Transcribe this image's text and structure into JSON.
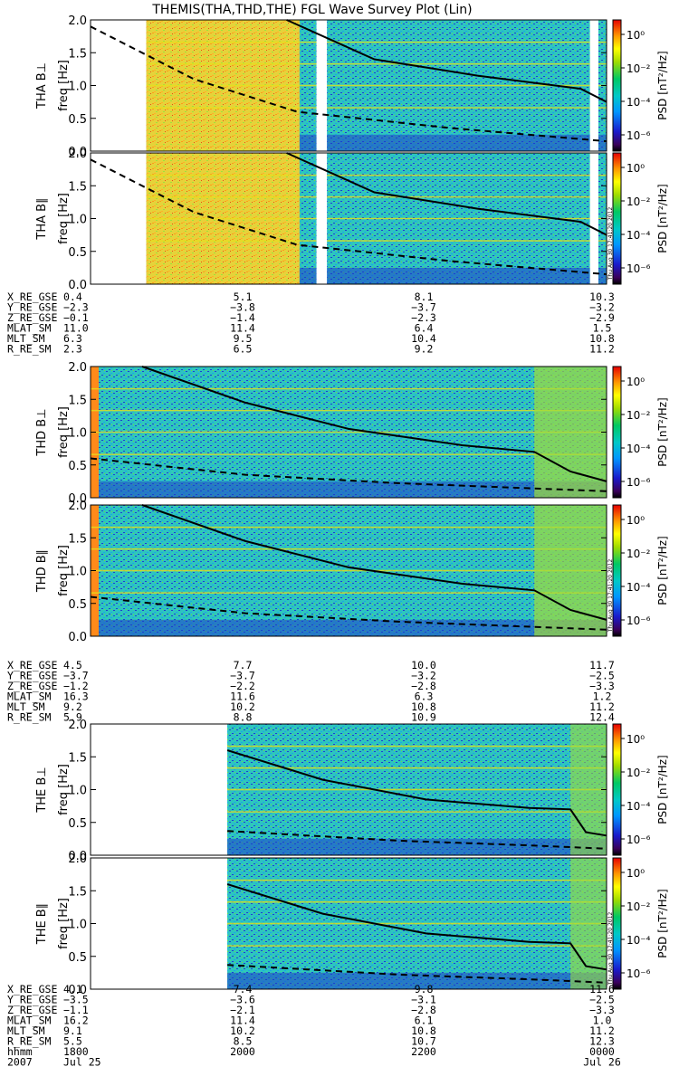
{
  "title": "THEMIS(THA,THD,THE) FGL Wave Survey Plot (Lin)",
  "stamp": "Thu Aug 30 17:41:20 2012",
  "colorbar": {
    "label": "PSD [nT²/Hz]",
    "ticks": [
      "10⁰",
      "10⁻²",
      "10⁻⁴",
      "10⁻⁶"
    ]
  },
  "freq_axis": {
    "label": "freq [Hz]",
    "ylim": [
      0.0,
      2.0
    ],
    "ticks": [
      "0.0",
      "0.5",
      "1.0",
      "1.5",
      "2.0"
    ]
  },
  "chart_data": [
    {
      "type": "heatmap",
      "probe": "THA",
      "component": "B⊥",
      "label": "THA B⊥",
      "data_intervals": [
        [
          0.108,
          0.438
        ],
        [
          0.458,
          0.968
        ],
        [
          0.984,
          1.0
        ]
      ],
      "rainbow_until": 0.405,
      "gap_intervals": [
        [
          0.438,
          0.458
        ],
        [
          0.968,
          0.984
        ]
      ],
      "solid_curve": [
        [
          0.38,
          2.0
        ],
        [
          0.55,
          1.4
        ],
        [
          0.75,
          1.15
        ],
        [
          0.95,
          0.95
        ],
        [
          1.0,
          0.75
        ]
      ],
      "dashed_curve": [
        [
          0.0,
          1.9
        ],
        [
          0.2,
          1.1
        ],
        [
          0.4,
          0.6
        ],
        [
          0.7,
          0.35
        ],
        [
          1.0,
          0.15
        ]
      ]
    },
    {
      "type": "heatmap",
      "probe": "THA",
      "component": "B∥",
      "label": "THA B∥",
      "data_intervals": [
        [
          0.108,
          0.438
        ],
        [
          0.458,
          0.968
        ],
        [
          0.984,
          1.0
        ]
      ],
      "rainbow_until": 0.405,
      "gap_intervals": [
        [
          0.438,
          0.458
        ],
        [
          0.968,
          0.984
        ]
      ],
      "solid_curve": [
        [
          0.38,
          2.0
        ],
        [
          0.55,
          1.4
        ],
        [
          0.75,
          1.15
        ],
        [
          0.95,
          0.95
        ],
        [
          1.0,
          0.75
        ]
      ],
      "dashed_curve": [
        [
          0.0,
          1.9
        ],
        [
          0.2,
          1.1
        ],
        [
          0.4,
          0.6
        ],
        [
          0.7,
          0.35
        ],
        [
          1.0,
          0.15
        ]
      ]
    },
    {
      "type": "heatmap",
      "probe": "THD",
      "component": "B⊥",
      "label": "THD B⊥",
      "data_intervals": [
        [
          0.0,
          1.0
        ]
      ],
      "solid_curve": [
        [
          0.1,
          2.0
        ],
        [
          0.3,
          1.45
        ],
        [
          0.5,
          1.05
        ],
        [
          0.72,
          0.8
        ],
        [
          0.86,
          0.7
        ],
        [
          0.93,
          0.4
        ],
        [
          1.0,
          0.25
        ]
      ],
      "dashed_curve": [
        [
          0.0,
          0.6
        ],
        [
          0.3,
          0.35
        ],
        [
          0.6,
          0.22
        ],
        [
          1.0,
          0.1
        ]
      ]
    },
    {
      "type": "heatmap",
      "probe": "THD",
      "component": "B∥",
      "label": "THD B∥",
      "data_intervals": [
        [
          0.0,
          1.0
        ]
      ],
      "solid_curve": [
        [
          0.1,
          2.0
        ],
        [
          0.3,
          1.45
        ],
        [
          0.5,
          1.05
        ],
        [
          0.72,
          0.8
        ],
        [
          0.86,
          0.7
        ],
        [
          0.93,
          0.4
        ],
        [
          1.0,
          0.25
        ]
      ],
      "dashed_curve": [
        [
          0.0,
          0.6
        ],
        [
          0.3,
          0.35
        ],
        [
          0.6,
          0.22
        ],
        [
          1.0,
          0.1
        ]
      ]
    },
    {
      "type": "heatmap",
      "probe": "THE",
      "component": "B⊥",
      "label": "THE B⊥",
      "data_intervals": [
        [
          0.265,
          1.0
        ]
      ],
      "solid_curve": [
        [
          0.265,
          1.6
        ],
        [
          0.45,
          1.15
        ],
        [
          0.65,
          0.85
        ],
        [
          0.85,
          0.72
        ],
        [
          0.93,
          0.7
        ],
        [
          0.96,
          0.35
        ],
        [
          1.0,
          0.3
        ]
      ],
      "dashed_curve": [
        [
          0.265,
          0.37
        ],
        [
          0.6,
          0.22
        ],
        [
          0.85,
          0.15
        ],
        [
          1.0,
          0.1
        ]
      ]
    },
    {
      "type": "heatmap",
      "probe": "THE",
      "component": "B∥",
      "label": "THE B∥",
      "data_intervals": [
        [
          0.265,
          1.0
        ]
      ],
      "solid_curve": [
        [
          0.265,
          1.6
        ],
        [
          0.45,
          1.15
        ],
        [
          0.65,
          0.85
        ],
        [
          0.85,
          0.72
        ],
        [
          0.93,
          0.7
        ],
        [
          0.96,
          0.35
        ],
        [
          1.0,
          0.3
        ]
      ],
      "dashed_curve": [
        [
          0.265,
          0.37
        ],
        [
          0.6,
          0.22
        ],
        [
          0.85,
          0.15
        ],
        [
          1.0,
          0.1
        ]
      ]
    }
  ],
  "ephemeris": [
    {
      "probe": "THA",
      "rows": [
        {
          "label": "X_RE_GSE",
          "values": [
            "0.4",
            "5.1",
            "8.1",
            "10.3"
          ]
        },
        {
          "label": "Y_RE_GSE",
          "values": [
            "−2.3",
            "−3.8",
            "−3.7",
            "−3.2"
          ]
        },
        {
          "label": "Z_RE_GSE",
          "values": [
            "−0.1",
            "−1.4",
            "−2.3",
            "−2.9"
          ]
        },
        {
          "label": "MLAT_SM",
          "values": [
            "11.0",
            "11.4",
            "6.4",
            "1.5"
          ]
        },
        {
          "label": "MLT_SM",
          "values": [
            "6.3",
            "9.5",
            "10.4",
            "10.8"
          ]
        },
        {
          "label": "R_RE_SM",
          "values": [
            "2.3",
            "6.5",
            "9.2",
            "11.2"
          ]
        }
      ]
    },
    {
      "probe": "THD",
      "rows": [
        {
          "label": "X_RE_GSE",
          "values": [
            "4.5",
            "7.7",
            "10.0",
            "11.7"
          ]
        },
        {
          "label": "Y_RE_GSE",
          "values": [
            "−3.7",
            "−3.7",
            "−3.2",
            "−2.5"
          ]
        },
        {
          "label": "Z_RE_GSE",
          "values": [
            "−1.2",
            "−2.2",
            "−2.8",
            "−3.3"
          ]
        },
        {
          "label": "MLAT_SM",
          "values": [
            "16.3",
            "11.6",
            "6.3",
            "1.2"
          ]
        },
        {
          "label": "MLT_SM",
          "values": [
            "9.2",
            "10.2",
            "10.8",
            "11.2"
          ]
        },
        {
          "label": "R_RE_SM",
          "values": [
            "5.9",
            "8.8",
            "10.9",
            "12.4"
          ]
        }
      ]
    },
    {
      "probe": "THE",
      "rows": [
        {
          "label": "X_RE_GSE",
          "values": [
            "4.1",
            "7.4",
            "9.8",
            "11.6"
          ]
        },
        {
          "label": "Y_RE_GSE",
          "values": [
            "−3.5",
            "−3.6",
            "−3.1",
            "−2.5"
          ]
        },
        {
          "label": "Z_RE_GSE",
          "values": [
            "−1.1",
            "−2.1",
            "−2.8",
            "−3.3"
          ]
        },
        {
          "label": "MLAT_SM",
          "values": [
            "16.2",
            "11.4",
            "6.1",
            "1.0"
          ]
        },
        {
          "label": "MLT_SM",
          "values": [
            "9.1",
            "10.2",
            "10.8",
            "11.2"
          ]
        },
        {
          "label": "R_RE_SM",
          "values": [
            "5.5",
            "8.5",
            "10.7",
            "12.3"
          ]
        },
        {
          "label": "hhmm",
          "values": [
            "1800",
            "2000",
            "2200",
            "0000"
          ]
        },
        {
          "label": "2007",
          "values": [
            "Jul 25",
            "",
            "",
            "Jul 26"
          ]
        }
      ]
    }
  ]
}
